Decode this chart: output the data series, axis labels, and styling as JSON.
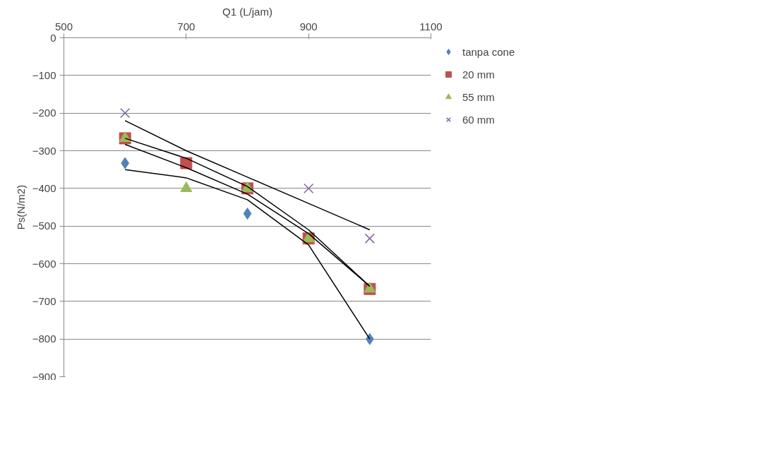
{
  "chart_data": {
    "type": "scatter",
    "title": "Q1 (L/jam)",
    "ylabel": "Ps(N/m2)",
    "x": [
      600,
      700,
      800,
      900,
      1000
    ],
    "xlim": [
      500,
      1100
    ],
    "xticks": [
      500,
      700,
      900,
      1100
    ],
    "ylim": [
      -900,
      0
    ],
    "yticks": [
      0,
      -100,
      -200,
      -300,
      -400,
      -500,
      -600,
      -700,
      -800,
      -900
    ],
    "grid": "y",
    "legend": "right",
    "series": [
      {
        "name": "tanpa cone",
        "color": "#4f81bd",
        "marker": "diamond",
        "values": [
          -333,
          null,
          -467,
          null,
          -800
        ]
      },
      {
        "name": "20 mm",
        "color": "#c0504d",
        "marker": "square",
        "values": [
          -267,
          -333,
          -400,
          -533,
          -667
        ]
      },
      {
        "name": "55 mm",
        "color": "#9bbb59",
        "marker": "triangle",
        "values": [
          -267,
          -400,
          -400,
          -533,
          -667
        ]
      },
      {
        "name": "60 mm",
        "color": "#8064a2",
        "marker": "cross",
        "values": [
          -200,
          null,
          null,
          -400,
          -533
        ]
      },
      {
        "type": "line",
        "color": "#000000",
        "marker": "none",
        "x": [
          600,
          700,
          800,
          900,
          1000
        ],
        "values": [
          -350,
          -372,
          -430,
          -550,
          -800
        ]
      },
      {
        "type": "line",
        "color": "#000000",
        "marker": "none",
        "x": [
          600,
          700,
          800,
          900,
          1000
        ],
        "values": [
          -267,
          -320,
          -395,
          -510,
          -660
        ]
      },
      {
        "type": "line",
        "color": "#000000",
        "marker": "none",
        "x": [
          600,
          700,
          800,
          900,
          1000
        ],
        "values": [
          -283,
          -345,
          -415,
          -520,
          -660
        ]
      },
      {
        "type": "line",
        "color": "#000000",
        "marker": "none",
        "x": [
          600,
          700,
          800,
          900,
          1000
        ],
        "values": [
          -220,
          -300,
          -370,
          -440,
          -510
        ]
      }
    ]
  }
}
